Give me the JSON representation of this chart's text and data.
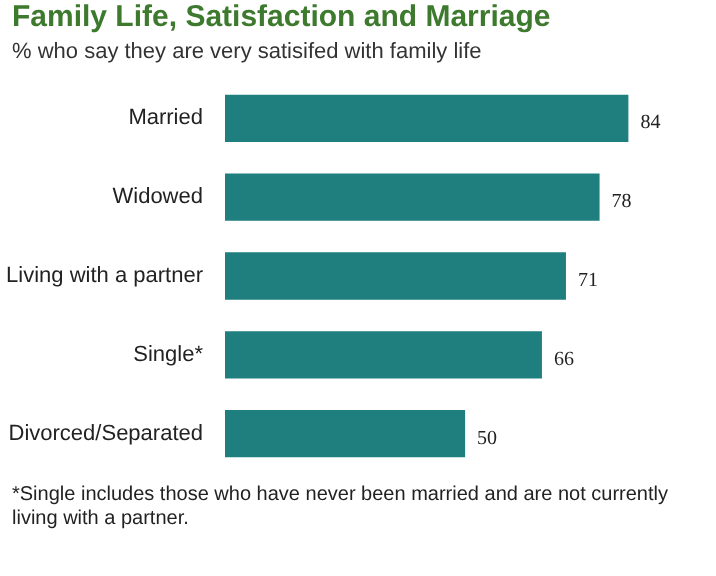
{
  "chart_data": {
    "type": "bar",
    "orientation": "horizontal",
    "title": "Family Life, Satisfaction and Marriage",
    "subtitle": "% who say they are very satisifed  with family life",
    "categories": [
      "Married",
      "Widowed",
      "Living with a partner",
      "Single*",
      "Divorced/Separated"
    ],
    "values": [
      84,
      78,
      71,
      66,
      50
    ],
    "color": "#1f7f7f",
    "data_labels": true,
    "annotations": [
      "*Single includes those who have never been married and are not currently living with a partner."
    ]
  }
}
